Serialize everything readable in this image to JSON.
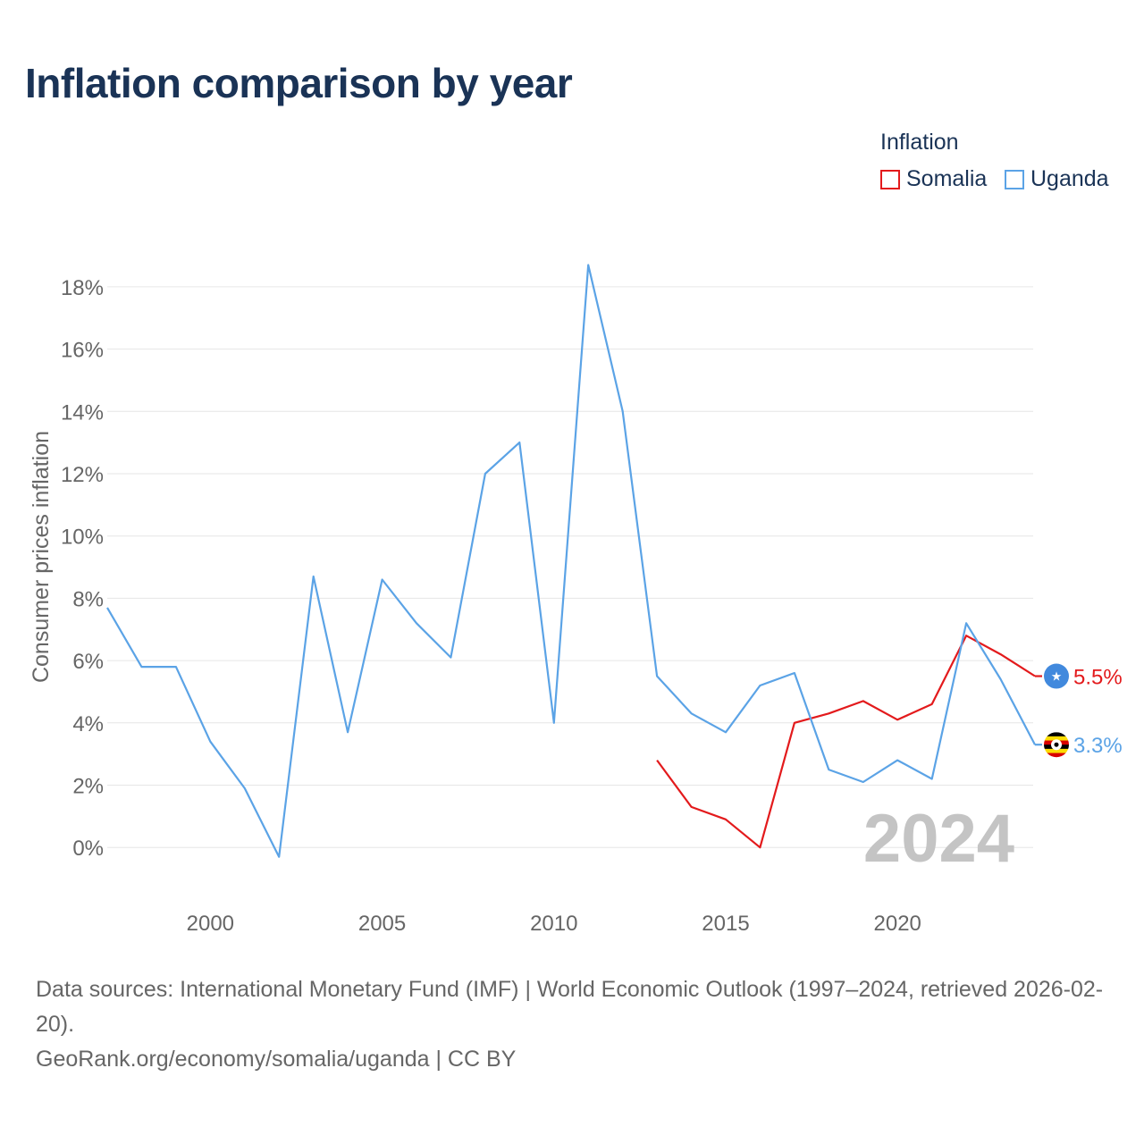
{
  "title": "Inflation comparison by year",
  "legend": {
    "title": "Inflation",
    "items": [
      {
        "label": "Somalia",
        "color": "#e31a1c"
      },
      {
        "label": "Uganda",
        "color": "#5ba3e6"
      }
    ]
  },
  "chart_data": {
    "type": "line",
    "ylabel": "Consumer prices inflation",
    "xlabel": "",
    "year_label": "2024",
    "xlim": [
      1997,
      2024
    ],
    "ylim": [
      -1.4,
      18.8
    ],
    "x_ticks": [
      2000,
      2005,
      2010,
      2015,
      2020
    ],
    "y_ticks": [
      0,
      2,
      4,
      6,
      8,
      10,
      12,
      14,
      16,
      18
    ],
    "y_tick_suffix": "%",
    "grid": true,
    "series": [
      {
        "name": "Somalia",
        "color": "#e31a1c",
        "x": [
          2013,
          2014,
          2015,
          2016,
          2017,
          2018,
          2019,
          2020,
          2021,
          2022,
          2023,
          2024
        ],
        "values": [
          2.8,
          1.3,
          0.9,
          0.0,
          4.0,
          4.3,
          4.7,
          4.1,
          4.6,
          6.8,
          6.2,
          5.5
        ],
        "end_label": "5.5%"
      },
      {
        "name": "Uganda",
        "color": "#5ba3e6",
        "x": [
          1997,
          1998,
          1999,
          2000,
          2001,
          2002,
          2003,
          2004,
          2005,
          2006,
          2007,
          2008,
          2009,
          2010,
          2011,
          2012,
          2013,
          2014,
          2015,
          2016,
          2017,
          2018,
          2019,
          2020,
          2021,
          2022,
          2023,
          2024
        ],
        "values": [
          7.7,
          5.8,
          5.8,
          3.4,
          1.9,
          -0.3,
          8.7,
          3.7,
          8.6,
          7.2,
          6.1,
          12.0,
          13.0,
          4.0,
          18.7,
          14.0,
          5.5,
          4.3,
          3.7,
          5.2,
          5.6,
          2.5,
          2.1,
          2.8,
          2.2,
          7.2,
          5.4,
          3.3
        ],
        "end_label": "3.3%"
      }
    ]
  },
  "footer": {
    "line1": "Data sources: International Monetary Fund (IMF) | World Economic Outlook (1997–2024, retrieved 2026-02-20).",
    "line2": "GeoRank.org/economy/somalia/uganda | CC BY"
  }
}
